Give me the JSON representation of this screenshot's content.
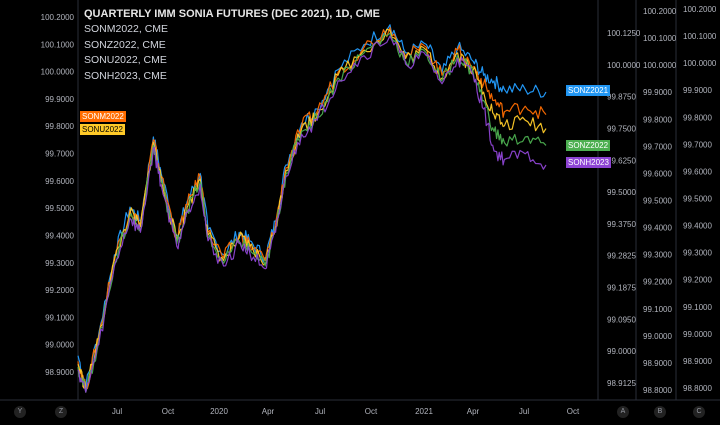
{
  "legend": {
    "title": "QUARTERLY IMM SONIA FUTURES (DEC 2021), 1D, CME",
    "items": [
      "SONM2022, CME",
      "SONZ2022, CME",
      "SONU2022, CME",
      "SONH2023, CME"
    ]
  },
  "tags": {
    "sonm": "SONM2022",
    "sonu": "SONU2022",
    "sonz2021": "SONZ2021",
    "sonz2022": "SONZ2022",
    "sonh2023": "SONH2023"
  },
  "corners": [
    "Y",
    "Z",
    "A",
    "B",
    "C"
  ],
  "colors": {
    "SONZ2021": "#2196f3",
    "SONM2022": "#ff6d00",
    "SONU2022": "#ffca28",
    "SONZ2022": "#4caf50",
    "SONH2023": "#8e44d4"
  },
  "chart_data": {
    "type": "line",
    "x_ticks": [
      "Jul",
      "Oct",
      "2020",
      "Apr",
      "Jul",
      "Oct",
      "2021",
      "Apr",
      "Jul",
      "Oct"
    ],
    "left_axis": [
      "100.2000",
      "100.1000",
      "100.0000",
      "99.9000",
      "99.8000",
      "99.7000",
      "99.6000",
      "99.5000",
      "99.4000",
      "99.3000",
      "99.2000",
      "99.1000",
      "99.0000",
      "98.9000"
    ],
    "axis_A": [
      "100.1250",
      "100.0000",
      "99.8750",
      "99.7500",
      "99.6250",
      "99.5000",
      "99.3750",
      "99.2825",
      "99.1875",
      "99.0950",
      "99.0000",
      "98.9125"
    ],
    "axis_B": [
      "100.2000",
      "100.1000",
      "100.0000",
      "99.9000",
      "99.8000",
      "99.7000",
      "99.6000",
      "99.5000",
      "99.4000",
      "99.3000",
      "99.2000",
      "99.1000",
      "99.0000",
      "98.9000",
      "98.8000"
    ],
    "axis_C": [
      "100.2000",
      "100.1000",
      "100.0000",
      "99.9000",
      "99.8000",
      "99.7000",
      "99.6000",
      "99.5000",
      "99.4000",
      "99.3000",
      "99.2000",
      "99.1000",
      "99.0000",
      "98.9000",
      "98.8000"
    ],
    "ylim": [
      98.83,
      100.21
    ],
    "series": [
      {
        "name": "SONZ2021",
        "last": 99.905,
        "points": [
          [
            0,
            98.97
          ],
          [
            0.015,
            98.86
          ],
          [
            0.04,
            99.05
          ],
          [
            0.07,
            99.33
          ],
          [
            0.1,
            99.5
          ],
          [
            0.12,
            99.45
          ],
          [
            0.145,
            99.75
          ],
          [
            0.16,
            99.62
          ],
          [
            0.19,
            99.4
          ],
          [
            0.21,
            99.52
          ],
          [
            0.235,
            99.62
          ],
          [
            0.25,
            99.42
          ],
          [
            0.28,
            99.33
          ],
          [
            0.31,
            99.41
          ],
          [
            0.33,
            99.38
          ],
          [
            0.36,
            99.32
          ],
          [
            0.38,
            99.45
          ],
          [
            0.4,
            99.65
          ],
          [
            0.43,
            99.8
          ],
          [
            0.46,
            99.85
          ],
          [
            0.5,
            99.99
          ],
          [
            0.55,
            100.08
          ],
          [
            0.6,
            100.15
          ],
          [
            0.63,
            100.05
          ],
          [
            0.67,
            100.08
          ],
          [
            0.7,
            99.98
          ],
          [
            0.73,
            100.07
          ],
          [
            0.76,
            100.02
          ],
          [
            0.78,
            99.97
          ],
          [
            0.8,
            99.95
          ],
          [
            0.82,
            99.92
          ],
          [
            0.86,
            99.92
          ],
          [
            0.9,
            99.91
          ]
        ]
      },
      {
        "name": "SONM2022",
        "last": 99.83,
        "points": [
          [
            0,
            98.95
          ],
          [
            0.015,
            98.85
          ],
          [
            0.04,
            99.04
          ],
          [
            0.07,
            99.32
          ],
          [
            0.1,
            99.49
          ],
          [
            0.12,
            99.44
          ],
          [
            0.145,
            99.74
          ],
          [
            0.16,
            99.61
          ],
          [
            0.19,
            99.39
          ],
          [
            0.21,
            99.51
          ],
          [
            0.235,
            99.61
          ],
          [
            0.25,
            99.41
          ],
          [
            0.28,
            99.32
          ],
          [
            0.31,
            99.4
          ],
          [
            0.33,
            99.37
          ],
          [
            0.36,
            99.31
          ],
          [
            0.38,
            99.44
          ],
          [
            0.4,
            99.64
          ],
          [
            0.43,
            99.79
          ],
          [
            0.46,
            99.84
          ],
          [
            0.5,
            99.98
          ],
          [
            0.55,
            100.07
          ],
          [
            0.6,
            100.14
          ],
          [
            0.63,
            100.04
          ],
          [
            0.67,
            100.07
          ],
          [
            0.7,
            99.97
          ],
          [
            0.73,
            100.06
          ],
          [
            0.76,
            100.0
          ],
          [
            0.78,
            99.94
          ],
          [
            0.8,
            99.88
          ],
          [
            0.82,
            99.84
          ],
          [
            0.86,
            99.86
          ],
          [
            0.9,
            99.83
          ]
        ]
      },
      {
        "name": "SONU2022",
        "last": 99.78,
        "points": [
          [
            0,
            98.94
          ],
          [
            0.015,
            98.85
          ],
          [
            0.04,
            99.03
          ],
          [
            0.07,
            99.31
          ],
          [
            0.1,
            99.48
          ],
          [
            0.12,
            99.43
          ],
          [
            0.145,
            99.73
          ],
          [
            0.16,
            99.6
          ],
          [
            0.19,
            99.38
          ],
          [
            0.21,
            99.5
          ],
          [
            0.235,
            99.6
          ],
          [
            0.25,
            99.4
          ],
          [
            0.28,
            99.31
          ],
          [
            0.31,
            99.39
          ],
          [
            0.33,
            99.36
          ],
          [
            0.36,
            99.3
          ],
          [
            0.38,
            99.43
          ],
          [
            0.4,
            99.63
          ],
          [
            0.43,
            99.78
          ],
          [
            0.46,
            99.83
          ],
          [
            0.5,
            99.97
          ],
          [
            0.55,
            100.06
          ],
          [
            0.6,
            100.13
          ],
          [
            0.63,
            100.03
          ],
          [
            0.67,
            100.06
          ],
          [
            0.7,
            99.96
          ],
          [
            0.73,
            100.05
          ],
          [
            0.76,
            99.99
          ],
          [
            0.78,
            99.91
          ],
          [
            0.8,
            99.83
          ],
          [
            0.82,
            99.79
          ],
          [
            0.86,
            99.81
          ],
          [
            0.9,
            99.78
          ]
        ]
      },
      {
        "name": "SONZ2022",
        "last": 99.72,
        "points": [
          [
            0,
            98.93
          ],
          [
            0.015,
            98.84
          ],
          [
            0.04,
            99.02
          ],
          [
            0.07,
            99.3
          ],
          [
            0.1,
            99.47
          ],
          [
            0.12,
            99.42
          ],
          [
            0.145,
            99.72
          ],
          [
            0.16,
            99.59
          ],
          [
            0.19,
            99.37
          ],
          [
            0.21,
            99.49
          ],
          [
            0.235,
            99.59
          ],
          [
            0.25,
            99.39
          ],
          [
            0.28,
            99.3
          ],
          [
            0.31,
            99.38
          ],
          [
            0.33,
            99.35
          ],
          [
            0.36,
            99.29
          ],
          [
            0.38,
            99.42
          ],
          [
            0.4,
            99.62
          ],
          [
            0.43,
            99.77
          ],
          [
            0.46,
            99.82
          ],
          [
            0.5,
            99.96
          ],
          [
            0.55,
            100.05
          ],
          [
            0.6,
            100.12
          ],
          [
            0.63,
            100.02
          ],
          [
            0.67,
            100.05
          ],
          [
            0.7,
            99.95
          ],
          [
            0.73,
            100.04
          ],
          [
            0.76,
            99.98
          ],
          [
            0.78,
            99.88
          ],
          [
            0.8,
            99.77
          ],
          [
            0.82,
            99.73
          ],
          [
            0.86,
            99.75
          ],
          [
            0.9,
            99.72
          ]
        ]
      },
      {
        "name": "SONH2023",
        "last": 99.65,
        "points": [
          [
            0,
            98.92
          ],
          [
            0.015,
            98.84
          ],
          [
            0.04,
            99.01
          ],
          [
            0.07,
            99.29
          ],
          [
            0.1,
            99.46
          ],
          [
            0.12,
            99.41
          ],
          [
            0.145,
            99.71
          ],
          [
            0.16,
            99.58
          ],
          [
            0.19,
            99.36
          ],
          [
            0.21,
            99.48
          ],
          [
            0.235,
            99.58
          ],
          [
            0.25,
            99.38
          ],
          [
            0.28,
            99.29
          ],
          [
            0.31,
            99.37
          ],
          [
            0.33,
            99.34
          ],
          [
            0.36,
            99.28
          ],
          [
            0.38,
            99.41
          ],
          [
            0.4,
            99.61
          ],
          [
            0.43,
            99.76
          ],
          [
            0.46,
            99.81
          ],
          [
            0.5,
            99.95
          ],
          [
            0.55,
            100.04
          ],
          [
            0.6,
            100.11
          ],
          [
            0.63,
            100.01
          ],
          [
            0.67,
            100.04
          ],
          [
            0.7,
            99.94
          ],
          [
            0.73,
            100.03
          ],
          [
            0.76,
            99.97
          ],
          [
            0.78,
            99.85
          ],
          [
            0.8,
            99.7
          ],
          [
            0.82,
            99.67
          ],
          [
            0.86,
            99.69
          ],
          [
            0.9,
            99.65
          ]
        ]
      }
    ]
  }
}
